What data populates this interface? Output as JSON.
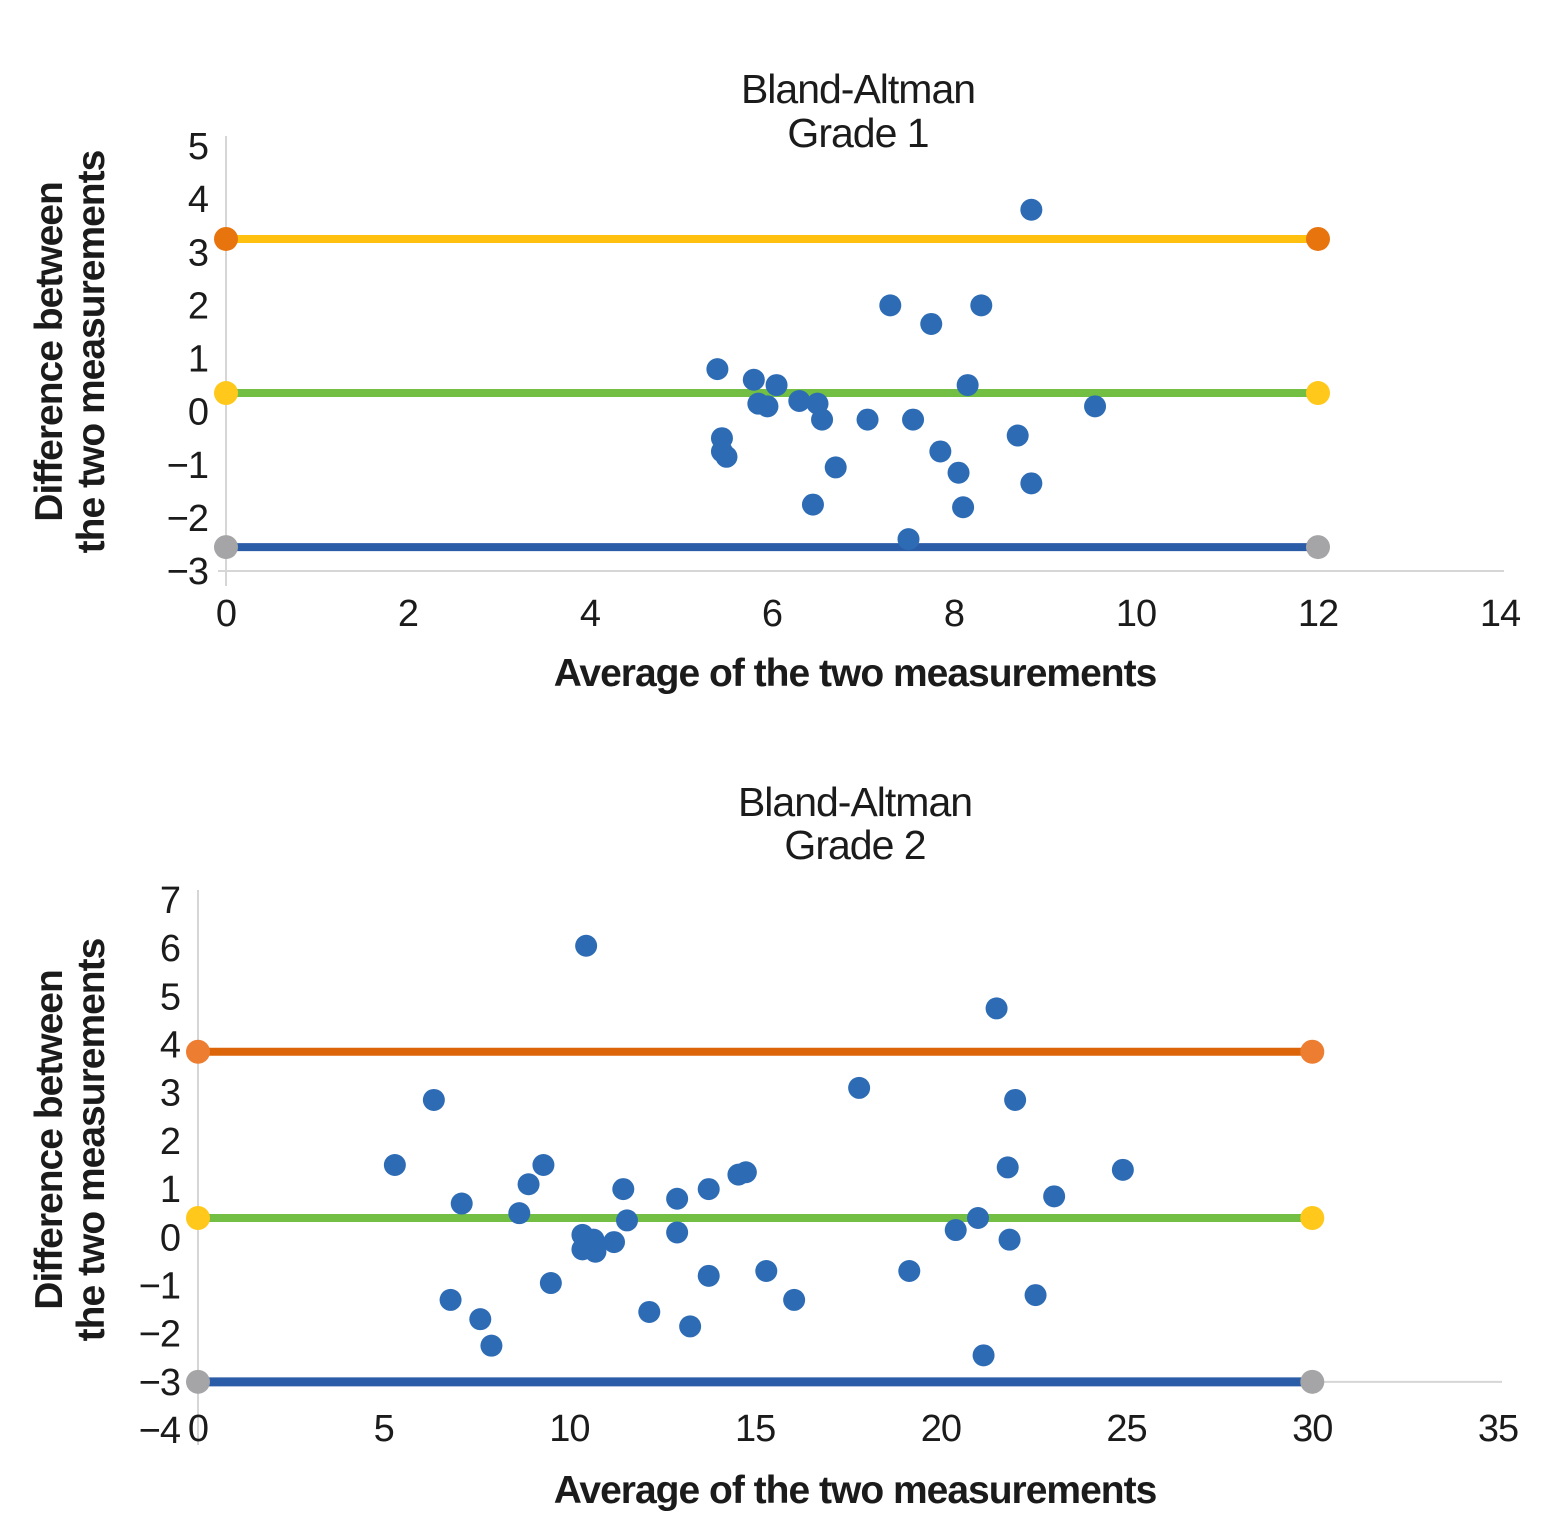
{
  "figure_name": "Bland-Altman agreement plots",
  "colors": {
    "point": "#2D6CB5",
    "mean_line": "#72BF44",
    "mean_marker": "#FFC81A",
    "lower_line": "#2B5CA8",
    "lower_marker": "#A5A5A8",
    "axis_line": "#D6D6D6",
    "text": "#1B1B1B"
  },
  "chart_data": [
    {
      "type": "scatter",
      "title": "Bland-Altman",
      "subtitle": "Grade 1",
      "xlabel": "Average of the two measurements",
      "ylabel_line1": "Difference between",
      "ylabel_line2": "the two measurements",
      "xlim": [
        0,
        14
      ],
      "ylim": [
        -3,
        5
      ],
      "grid": false,
      "legend_position": "none",
      "x_ticks": [
        0,
        2,
        4,
        6,
        8,
        10,
        12,
        14
      ],
      "x_tick_labels": [
        "0",
        "2",
        "4",
        "6",
        "8",
        "10",
        "12",
        "14"
      ],
      "y_ticks": [
        5,
        4,
        3,
        2,
        1,
        0,
        -1,
        -2,
        -3
      ],
      "y_tick_labels": [
        "5",
        "4",
        "3",
        "2",
        "1",
        "0",
        "−1",
        "−2",
        "−3"
      ],
      "mean_line": 0.35,
      "upper_loa": 3.25,
      "lower_loa": -2.55,
      "ref_lines_x_span": [
        0,
        12
      ],
      "line_colors": {
        "upper": "#FFC010",
        "mean": "#72BF44",
        "lower": "#2B5CA8"
      },
      "marker_colors": {
        "upper": "#E8740E",
        "mean": "#FFC81A",
        "lower": "#A5A5A8"
      },
      "points": [
        [
          5.4,
          0.8
        ],
        [
          5.45,
          -0.5
        ],
        [
          5.45,
          -0.75
        ],
        [
          5.5,
          -0.85
        ],
        [
          5.8,
          0.6
        ],
        [
          5.85,
          0.15
        ],
        [
          5.95,
          0.1
        ],
        [
          6.05,
          0.5
        ],
        [
          6.3,
          0.2
        ],
        [
          6.5,
          0.15
        ],
        [
          6.55,
          -0.15
        ],
        [
          6.45,
          -1.75
        ],
        [
          6.7,
          -1.05
        ],
        [
          7.05,
          -0.15
        ],
        [
          7.3,
          2.0
        ],
        [
          7.55,
          -0.15
        ],
        [
          7.5,
          -2.4
        ],
        [
          7.75,
          1.65
        ],
        [
          7.85,
          -0.75
        ],
        [
          8.05,
          -1.15
        ],
        [
          8.1,
          -1.8
        ],
        [
          8.15,
          0.5
        ],
        [
          8.3,
          2.0
        ],
        [
          8.7,
          -0.45
        ],
        [
          8.85,
          -1.35
        ],
        [
          8.85,
          3.8
        ],
        [
          9.55,
          0.1
        ]
      ]
    },
    {
      "type": "scatter",
      "title": "Bland-Altman",
      "subtitle": "Grade 2",
      "xlabel": "Average of the two measurements",
      "ylabel_line1": "Difference between",
      "ylabel_line2": "the two measurements",
      "xlim": [
        0,
        35
      ],
      "ylim": [
        -4,
        7
      ],
      "grid": false,
      "legend_position": "none",
      "x_ticks": [
        0,
        5,
        10,
        15,
        20,
        25,
        30,
        35
      ],
      "x_tick_labels": [
        "0",
        "5",
        "10",
        "15",
        "20",
        "25",
        "30",
        "35"
      ],
      "y_ticks": [
        7,
        6,
        5,
        4,
        3,
        2,
        1,
        0,
        -1,
        -2,
        -3,
        -4
      ],
      "y_tick_labels": [
        "7",
        "6",
        "5",
        "4",
        "3",
        "2",
        "1",
        "0",
        "−1",
        "−2",
        "−3",
        "−4"
      ],
      "mean_line": 0.4,
      "upper_loa": 3.85,
      "lower_loa": -3.0,
      "ref_lines_x_span": [
        0,
        30
      ],
      "line_colors": {
        "upper": "#DD6509",
        "mean": "#72BF44",
        "lower": "#2B5CA8"
      },
      "marker_colors": {
        "upper": "#ED7D31",
        "mean": "#FFC81A",
        "lower": "#A5A5A8"
      },
      "points": [
        [
          10.45,
          6.05
        ],
        [
          6.35,
          2.85
        ],
        [
          5.3,
          1.5
        ],
        [
          9.3,
          1.5
        ],
        [
          8.9,
          1.1
        ],
        [
          7.1,
          0.7
        ],
        [
          8.65,
          0.5
        ],
        [
          11.45,
          1.0
        ],
        [
          11.55,
          0.35
        ],
        [
          12.9,
          0.8
        ],
        [
          13.75,
          1.0
        ],
        [
          14.55,
          1.3
        ],
        [
          14.75,
          1.35
        ],
        [
          10.35,
          0.05
        ],
        [
          10.65,
          -0.05
        ],
        [
          10.35,
          -0.25
        ],
        [
          10.7,
          -0.3
        ],
        [
          11.2,
          -0.1
        ],
        [
          12.9,
          0.1
        ],
        [
          9.5,
          -0.95
        ],
        [
          13.75,
          -0.8
        ],
        [
          15.3,
          -0.7
        ],
        [
          6.8,
          -1.3
        ],
        [
          7.6,
          -1.7
        ],
        [
          7.9,
          -2.25
        ],
        [
          12.15,
          -1.55
        ],
        [
          13.25,
          -1.85
        ],
        [
          17.8,
          3.1
        ],
        [
          21.5,
          4.75
        ],
        [
          22.0,
          2.85
        ],
        [
          21.8,
          1.45
        ],
        [
          24.9,
          1.4
        ],
        [
          23.05,
          0.85
        ],
        [
          21.0,
          0.4
        ],
        [
          20.4,
          0.15
        ],
        [
          21.85,
          -0.05
        ],
        [
          19.15,
          -0.7
        ],
        [
          16.05,
          -1.3
        ],
        [
          22.55,
          -1.2
        ],
        [
          21.15,
          -2.45
        ]
      ]
    }
  ]
}
